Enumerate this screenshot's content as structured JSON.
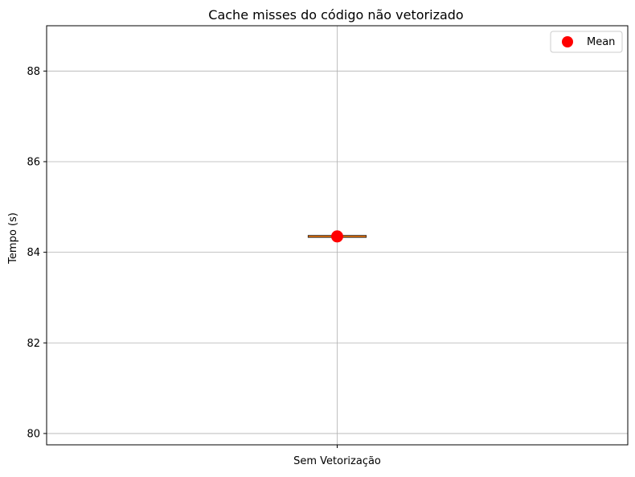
{
  "chart_data": {
    "type": "box",
    "title": "Cache misses do código não vetorizado",
    "xlabel": "",
    "ylabel": "Tempo  (s)",
    "ylim": [
      79.75,
      89.0
    ],
    "yticks": [
      80,
      82,
      84,
      86,
      88
    ],
    "ytick_labels": [
      "80",
      "82",
      "84",
      "86",
      "88"
    ],
    "categories": [
      "Sem Vetorização"
    ],
    "boxes": [
      {
        "category": "Sem Vetorização",
        "min": 84.35,
        "q1": 84.35,
        "median": 84.35,
        "q3": 84.35,
        "max": 84.35
      }
    ],
    "mean": {
      "label": "Mean",
      "values": [
        84.35
      ],
      "color": "#ff0000"
    },
    "median_color": "#ff7f0e",
    "grid": true,
    "legend_position": "top-right"
  }
}
